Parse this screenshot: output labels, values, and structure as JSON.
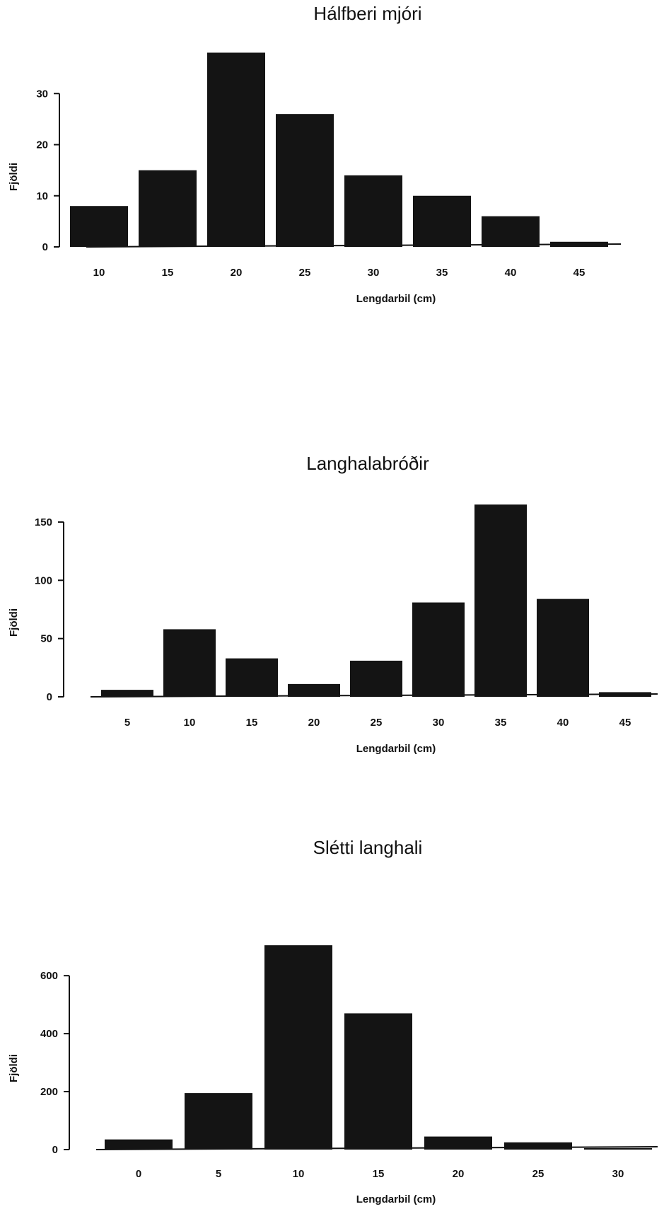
{
  "chart_data": [
    {
      "type": "bar",
      "title": "Hálfberi mjóri",
      "xlabel": "Lengdarbil (cm)",
      "ylabel": "Fjöldi",
      "categories": [
        "10",
        "15",
        "20",
        "25",
        "30",
        "35",
        "40",
        "45"
      ],
      "values": [
        8,
        15,
        38,
        26,
        14,
        10,
        6,
        1
      ],
      "ylim": [
        0,
        40
      ],
      "yticks": [
        0,
        10,
        20,
        30
      ],
      "grid": false
    },
    {
      "type": "bar",
      "title": "Langhalabróðir",
      "xlabel": "Lengdarbil (cm)",
      "ylabel": "Fjöldi",
      "categories": [
        "5",
        "10",
        "15",
        "20",
        "25",
        "30",
        "35",
        "40",
        "45"
      ],
      "values": [
        6,
        58,
        33,
        11,
        31,
        81,
        165,
        84,
        4
      ],
      "ylim": [
        0,
        170
      ],
      "yticks": [
        0,
        50,
        100,
        150
      ],
      "grid": false
    },
    {
      "type": "bar",
      "title": "Slétti langhali",
      "xlabel": "Lengdarbil (cm)",
      "ylabel": "Fjöldi",
      "categories": [
        "0",
        "5",
        "10",
        "15",
        "20",
        "25",
        "30"
      ],
      "values": [
        35,
        195,
        705,
        470,
        45,
        25,
        5
      ],
      "ylim": [
        0,
        720
      ],
      "yticks": [
        0,
        200,
        400,
        600
      ],
      "grid": false
    }
  ]
}
